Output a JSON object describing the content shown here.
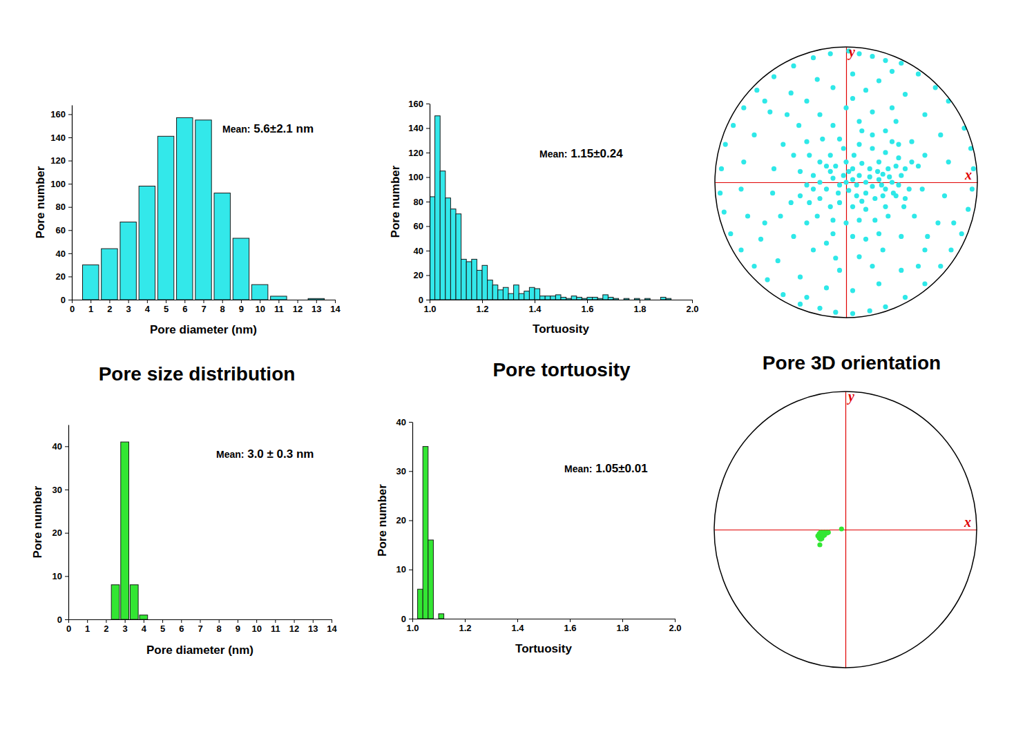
{
  "chart_data": [
    {
      "type": "bar",
      "title": "Pore size distribution",
      "xlabel": "Pore diameter (nm)",
      "ylabel": "Pore number",
      "annotation": "Mean: 5.6±2.1 nm",
      "x": [
        1,
        2,
        3,
        4,
        5,
        6,
        7,
        8,
        9,
        10,
        11,
        12,
        13
      ],
      "values": [
        30,
        44,
        67,
        98,
        141,
        157,
        155,
        92,
        53,
        13,
        3,
        0,
        1
      ],
      "color": "#33e8ea",
      "xlim": [
        0,
        14
      ],
      "xticks": [
        0,
        1,
        2,
        3,
        4,
        5,
        6,
        7,
        8,
        9,
        10,
        11,
        12,
        13,
        14
      ],
      "ylim": [
        0,
        168
      ],
      "yticks": [
        0,
        20,
        40,
        60,
        80,
        100,
        120,
        140,
        160
      ]
    },
    {
      "type": "histogram",
      "title": "Pore tortuosity",
      "xlabel": "Tortuosity",
      "ylabel": "Pore number",
      "annotation": "Mean: 1.15±0.24",
      "bins": [
        1,
        1.02,
        1.04,
        1.06,
        1.08,
        1.1,
        1.12,
        1.14,
        1.16,
        1.18,
        1.2,
        1.22,
        1.24,
        1.26,
        1.28,
        1.3,
        1.32,
        1.34,
        1.36,
        1.38,
        1.4,
        1.42,
        1.44,
        1.46,
        1.48,
        1.5,
        1.52,
        1.54,
        1.56,
        1.58,
        1.6,
        1.62,
        1.64,
        1.66,
        1.68,
        1.7,
        1.72,
        1.74,
        1.76,
        1.78,
        1.8,
        1.82,
        1.84,
        1.86,
        1.88,
        1.9,
        1.92
      ],
      "values": [
        84,
        150,
        105,
        83,
        74,
        70,
        33,
        31,
        33,
        24,
        28,
        16,
        12,
        8,
        10,
        5,
        12,
        5,
        7,
        10,
        9,
        3,
        3,
        3,
        4,
        2,
        1,
        3,
        2,
        1,
        2,
        2,
        1,
        4,
        2,
        1,
        0,
        1,
        0,
        1,
        0,
        1,
        0,
        0,
        2,
        1
      ],
      "color": "#33e8ea",
      "xlim": [
        1,
        2
      ],
      "xticks": [
        {
          "value": 1,
          "label": "1.0"
        },
        1.2,
        1.4,
        1.6,
        1.8,
        {
          "value": 2,
          "label": "2.0"
        }
      ],
      "ylim": [
        0,
        160
      ],
      "yticks": [
        0,
        20,
        40,
        60,
        80,
        100,
        120,
        140,
        160
      ]
    },
    {
      "type": "scatter",
      "title": "Pore 3D orientation",
      "xlabel": "x",
      "ylabel": "y",
      "color": "#2ee8e8",
      "marker": "circle",
      "tick_labels": false,
      "xlim": [
        -1,
        1
      ],
      "ylim": [
        -1,
        1
      ],
      "x": [
        0.02,
        0.1,
        0.2,
        0.3,
        0.42,
        0.55,
        0.68,
        0.78,
        0.9,
        0.95,
        0.97,
        0.96,
        0.93,
        0.88,
        0.8,
        0.72,
        0.6,
        0.45,
        0.3,
        0.18,
        0.05,
        -0.08,
        -0.2,
        -0.35,
        -0.48,
        -0.6,
        -0.7,
        -0.8,
        -0.88,
        -0.93,
        -0.96,
        -0.95,
        -0.92,
        -0.86,
        -0.78,
        -0.68,
        -0.55,
        -0.4,
        -0.25,
        -0.12,
        0.05,
        0.25,
        0.45,
        0.6,
        0.72,
        0.78,
        0.75,
        0.7,
        0.6,
        0.42,
        0.25,
        0.05,
        -0.15,
        -0.35,
        -0.52,
        -0.65,
        -0.75,
        -0.8,
        -0.78,
        -0.7,
        -0.58,
        -0.42,
        -0.22,
        0.15,
        -0.1,
        0.55,
        0.82,
        -0.62,
        0.35,
        -0.3,
        0,
        0.2,
        0.38,
        0.5,
        0.55,
        0.58,
        0.52,
        0.42,
        0.28,
        0.1,
        -0.08,
        -0.25,
        -0.4,
        -0.5,
        -0.56,
        -0.55,
        -0.48,
        -0.36,
        -0.2,
        0.1,
        0.3,
        -0.1,
        0.45,
        -0.42,
        0.15,
        -0.15,
        0.6,
        -0.62,
        0.35,
        -0.3,
        0.05,
        0.62,
        -0.45,
        0.2,
        -0.05,
        0,
        0.05,
        0.1,
        0.15,
        0.2,
        0.25,
        0.3,
        0.35,
        0.4,
        0.28,
        0.22,
        0.15,
        0.08,
        0.02,
        -0.05,
        -0.1,
        -0.15,
        -0.2,
        -0.25,
        -0.3,
        -0.08,
        0,
        0.06,
        0.12,
        0.18,
        0.25,
        0.32,
        0.38,
        -0.02,
        -0.12,
        -0.2,
        -0.28,
        0.1,
        0.2,
        0.3,
        -0.05,
        0.15,
        0.05,
        -0.05,
        -0.12,
        -0.2,
        -0.28,
        0.3,
        0.38,
        0.42,
        0.45,
        0.1,
        0,
        -0.1,
        -0.22,
        0.22,
        0.32,
        -0.35,
        -0.35,
        0.48,
        0.12,
        -0.18,
        0.35,
        0.02,
        0.08,
        -0.02,
        0.18,
        0.27,
        0.33,
        0.36,
        0.24,
        -0.06,
        -0.12,
        0.12,
        0.05,
        -0.15,
        0.28,
        0.4,
        0.44,
        -0.25,
        -0.4,
        0.5,
        -0.3,
        0.2,
        -0.1,
        0.05,
        0.25,
        -0.3,
        0.4
      ],
      "values": [
        0.97,
        0.95,
        0.93,
        0.9,
        0.88,
        0.8,
        0.7,
        0.6,
        0.4,
        0.25,
        0.1,
        -0.05,
        -0.2,
        -0.38,
        -0.5,
        -0.62,
        -0.75,
        -0.85,
        -0.92,
        -0.95,
        -0.97,
        -0.96,
        -0.93,
        -0.9,
        -0.83,
        -0.72,
        -0.62,
        -0.5,
        -0.38,
        -0.22,
        -0.08,
        0.1,
        0.28,
        0.42,
        0.55,
        0.68,
        0.78,
        0.86,
        0.92,
        0.95,
        0.8,
        0.75,
        0.65,
        0.5,
        0.35,
        0.15,
        -0.1,
        -0.3,
        -0.5,
        -0.65,
        -0.75,
        -0.8,
        -0.78,
        -0.7,
        -0.58,
        -0.42,
        -0.25,
        -0.05,
        0.15,
        0.35,
        0.52,
        0.66,
        0.76,
        0.68,
        0.7,
        -0.62,
        -0.3,
        0.6,
        0.82,
        -0.85,
        0.55,
        0.52,
        0.45,
        0.3,
        0.12,
        -0.05,
        -0.25,
        -0.4,
        -0.5,
        -0.55,
        -0.56,
        -0.5,
        -0.4,
        -0.25,
        -0.08,
        0.1,
        0.28,
        0.42,
        0.5,
        0.45,
        0.38,
        0.42,
        -0.12,
        -0.15,
        -0.42,
        -0.45,
        0.2,
        -0.3,
        0.55,
        0.6,
        0.62,
        -0.4,
        0.5,
        -0.62,
        -0.65,
        0,
        0.02,
        0.05,
        0,
        -0.03,
        0.02,
        -0.05,
        0,
        -0.02,
        -0.1,
        -0.12,
        -0.08,
        -0.1,
        -0.06,
        -0.02,
        0.03,
        -0.05,
        0,
        0.05,
        -0.02,
        0.12,
        0.15,
        0.2,
        0.14,
        0.1,
        0.15,
        0.1,
        0.12,
        0.25,
        0.2,
        0.15,
        0.2,
        0.28,
        0.25,
        0.22,
        0.32,
        -0.2,
        -0.18,
        -0.15,
        -0.18,
        -0.12,
        -0.15,
        -0.18,
        -0.1,
        0.05,
        0.1,
        -0.28,
        -0.3,
        -0.28,
        -0.25,
        -0.28,
        -0.25,
        0.08,
        -0.1,
        -0.05,
        0.38,
        0.32,
        0.3,
        0.08,
        -0.02,
        0.05,
        0.04,
        -0.02,
        0.04,
        -0.08,
        0.08,
        -0.08,
        0.08,
        -0.14,
        0.1,
        0.12,
        0.06,
        0.18,
        -0.18,
        -0.05,
        0.2,
        0.15,
        0.3,
        0.35,
        -0.38,
        -0.4,
        -0.38,
        -0.3,
        0.28
      ]
    },
    {
      "type": "bar",
      "xlabel": "Pore diameter (nm)",
      "ylabel": "Pore number",
      "annotation": "Mean: 3.0 ± 0.3 nm",
      "x": [
        2.5,
        3,
        3.5,
        4
      ],
      "values": [
        8,
        41,
        8,
        1
      ],
      "color": "#33e633",
      "xlim": [
        0,
        14
      ],
      "xticks": [
        0,
        1,
        2,
        3,
        4,
        5,
        6,
        7,
        8,
        9,
        10,
        11,
        12,
        13,
        14
      ],
      "ylim": [
        0,
        45
      ],
      "yticks": [
        0,
        10,
        20,
        30,
        40
      ]
    },
    {
      "type": "histogram",
      "xlabel": "Tortuosity",
      "ylabel": "Pore number",
      "annotation": "Mean: 1.05±0.01",
      "bins": [
        1.02,
        1.04,
        1.06,
        1.08,
        1.1,
        1.12
      ],
      "values": [
        6,
        35,
        16,
        0,
        1
      ],
      "color": "#33e633",
      "xlim": [
        1,
        2
      ],
      "xticks": [
        {
          "value": 1,
          "label": "1.0"
        },
        1.2,
        1.4,
        1.6,
        1.8,
        {
          "value": 2,
          "label": "2.0"
        }
      ],
      "ylim": [
        0,
        40
      ],
      "yticks": [
        0,
        10,
        20,
        30,
        40
      ]
    },
    {
      "type": "scatter",
      "xlabel": "x",
      "ylabel": "y",
      "color": "#33e633",
      "marker": "circle",
      "tick_labels": false,
      "xlim": [
        -1,
        1
      ],
      "ylim": [
        -1,
        1
      ],
      "x": [
        -0.2,
        -0.19,
        -0.18,
        -0.17,
        -0.16,
        -0.15,
        -0.14,
        -0.19,
        -0.18,
        -0.17,
        -0.2,
        -0.19,
        -0.16,
        -0.13,
        -0.195,
        -0.03,
        -0.18,
        -0.17,
        -0.21
      ],
      "values": [
        -0.03,
        -0.02,
        -0.03,
        -0.02,
        -0.03,
        -0.02,
        -0.025,
        -0.05,
        -0.055,
        -0.045,
        -0.06,
        -0.07,
        -0.04,
        -0.02,
        -0.11,
        0.005,
        -0.065,
        -0.035,
        -0.045
      ]
    }
  ]
}
